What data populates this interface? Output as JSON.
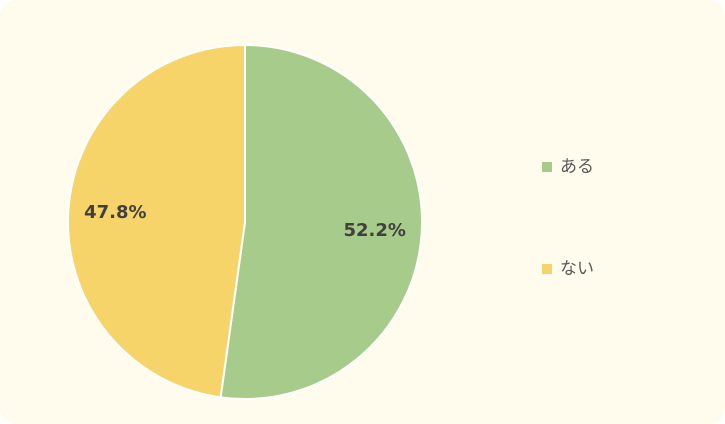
{
  "chart_data": {
    "type": "pie",
    "categories": [
      "ある",
      "ない"
    ],
    "values": [
      52.2,
      47.8
    ],
    "value_labels": [
      "52.2%",
      "47.8%"
    ],
    "colors": [
      "#a7cb8b",
      "#f7d46a"
    ],
    "legend": "right"
  }
}
